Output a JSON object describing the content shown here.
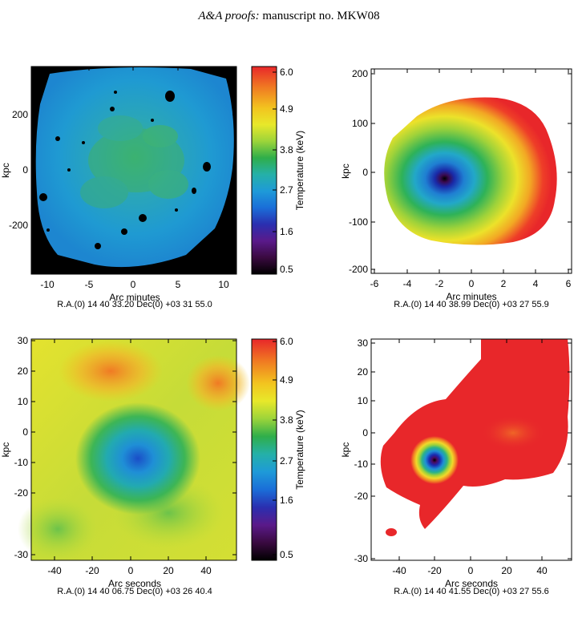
{
  "header": {
    "journal": "A&A proofs:",
    "manuscript": "manuscript no. MKW08"
  },
  "colorbar": {
    "label": "Temperature (keV)",
    "ticks": [
      "6.0",
      "4.9",
      "3.8",
      "2.7",
      "1.6",
      "0.5"
    ],
    "stops": [
      "#e8272a",
      "#f07a22",
      "#f2c41f",
      "#e8e82a",
      "#9cd43a",
      "#2fae4a",
      "#25b0a8",
      "#1e9ad8",
      "#1a6ed8",
      "#2a2fb0",
      "#5a1a8a",
      "#3a0a40",
      "#000000"
    ]
  },
  "panels": [
    {
      "id": "top-left",
      "x_label": "Arc minutes",
      "y_label": "kpc",
      "x_ticks": [
        "-10",
        "-5",
        "0",
        "5",
        "10"
      ],
      "y_ticks": [
        "200",
        "0",
        "-200"
      ],
      "coord_text": "R.A.(0) 14 40 33.20   Dec(0) +03 31 55.0",
      "has_colorbar": true
    },
    {
      "id": "top-right",
      "x_label": "Arc minutes",
      "y_label": "kpc",
      "x_ticks": [
        "-6",
        "-4",
        "-2",
        "0",
        "2",
        "4",
        "6"
      ],
      "y_ticks": [
        "200",
        "100",
        "0",
        "-100",
        "-200"
      ],
      "coord_text": "R.A.(0) 14 40 38.99   Dec(0) +03 27 55.9",
      "has_colorbar": false
    },
    {
      "id": "bottom-left",
      "x_label": "Arc seconds",
      "y_label": "kpc",
      "x_ticks": [
        "-40",
        "-20",
        "0",
        "20",
        "40"
      ],
      "y_ticks": [
        "30",
        "20",
        "10",
        "0",
        "-10",
        "-20",
        "-30"
      ],
      "coord_text": "R.A.(0) 14 40 06.75   Dec(0) +03 26 40.4",
      "has_colorbar": true
    },
    {
      "id": "bottom-right",
      "x_label": "Arc seconds",
      "y_label": "kpc",
      "x_ticks": [
        "-40",
        "-20",
        "0",
        "20",
        "40"
      ],
      "y_ticks": [
        "30",
        "20",
        "10",
        "0",
        "-10",
        "-20",
        "-30"
      ],
      "coord_text": "R.A.(0) 14 40 41.55   Dec(0) +03 27 55.6",
      "has_colorbar": false
    }
  ]
}
